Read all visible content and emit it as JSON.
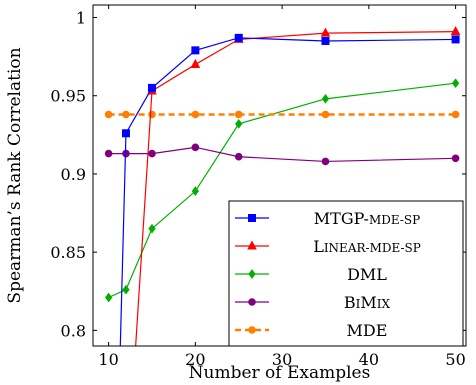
{
  "chart_data": {
    "type": "line",
    "xlabel": "Number of Examples",
    "ylabel": "Spearman’s Rank Correlation",
    "xlim": [
      8.2,
      51.2
    ],
    "ylim": [
      0.79,
      1.008
    ],
    "xticks": [
      10,
      20,
      30,
      40,
      50
    ],
    "yticks": [
      0.8,
      0.85,
      0.9,
      0.95,
      1
    ],
    "ytick_labels": [
      "0.8",
      "0.85",
      "0.9",
      "0.95",
      "1"
    ],
    "grid": false,
    "legend_position": "bottom-right",
    "series": [
      {
        "name": "MTGP-MDE-SP",
        "legend_label": {
          "big1": "MTGP-",
          "small": "MDE-SP",
          "big2": ""
        },
        "color": "#0000ff",
        "marker": "square",
        "dashed": false,
        "points": [
          [
            11.3,
            0.78
          ],
          [
            12,
            0.926
          ],
          [
            15,
            0.955
          ],
          [
            20,
            0.979
          ],
          [
            25,
            0.987
          ],
          [
            35,
            0.985
          ],
          [
            50,
            0.986
          ]
        ]
      },
      {
        "name": "LINEAR-MDE-SP",
        "legend_label": {
          "big1": "L",
          "small": "INEAR-MDE-SP",
          "big2": ""
        },
        "color": "#ff0000",
        "marker": "triangle",
        "dashed": false,
        "points": [
          [
            13,
            0.78
          ],
          [
            15,
            0.953
          ],
          [
            20,
            0.97
          ],
          [
            25,
            0.986
          ],
          [
            35,
            0.99
          ],
          [
            50,
            0.991
          ]
        ]
      },
      {
        "name": "DML",
        "legend_label": {
          "big1": "DML",
          "small": "",
          "big2": ""
        },
        "color": "#00b000",
        "marker": "diamond",
        "dashed": false,
        "points": [
          [
            10,
            0.821
          ],
          [
            12,
            0.826
          ],
          [
            15,
            0.865
          ],
          [
            20,
            0.889
          ],
          [
            25,
            0.932
          ],
          [
            35,
            0.948
          ],
          [
            50,
            0.958
          ]
        ]
      },
      {
        "name": "BIMIX",
        "legend_label": {
          "big1": "B",
          "small": "I",
          "big2": "M",
          "small2": "IX"
        },
        "color": "#800080",
        "marker": "circle",
        "dashed": false,
        "points": [
          [
            10,
            0.913
          ],
          [
            12,
            0.913
          ],
          [
            15,
            0.913
          ],
          [
            20,
            0.917
          ],
          [
            25,
            0.911
          ],
          [
            35,
            0.908
          ],
          [
            50,
            0.91
          ]
        ]
      },
      {
        "name": "MDE",
        "legend_label": {
          "big1": "MDE",
          "small": "",
          "big2": ""
        },
        "color": "#ff8000",
        "marker": "circle",
        "dashed": true,
        "points": [
          [
            10,
            0.938
          ],
          [
            12,
            0.938
          ],
          [
            15,
            0.938
          ],
          [
            20,
            0.938
          ],
          [
            25,
            0.938
          ],
          [
            35,
            0.938
          ],
          [
            50,
            0.938
          ]
        ]
      }
    ]
  }
}
